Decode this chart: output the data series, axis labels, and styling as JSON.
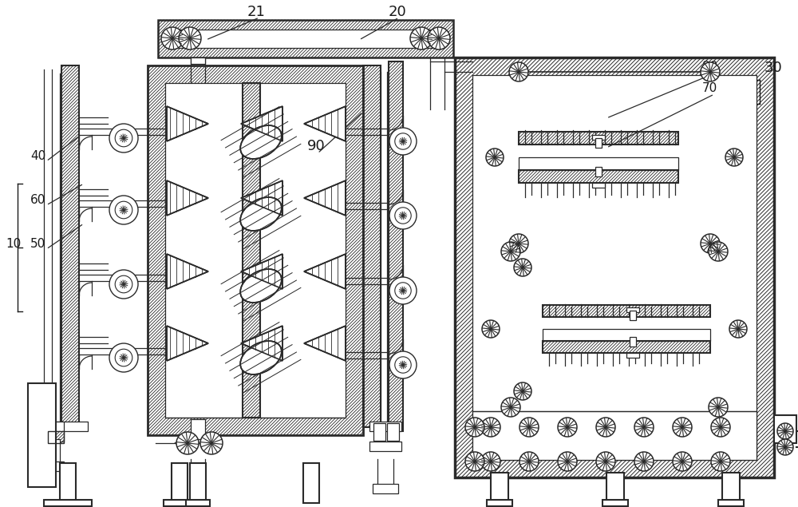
{
  "bg_color": "#ffffff",
  "line_color": "#2a2a2a",
  "label_color": "#1a1a1a",
  "figsize": [
    10.0,
    6.35
  ],
  "dpi": 100
}
